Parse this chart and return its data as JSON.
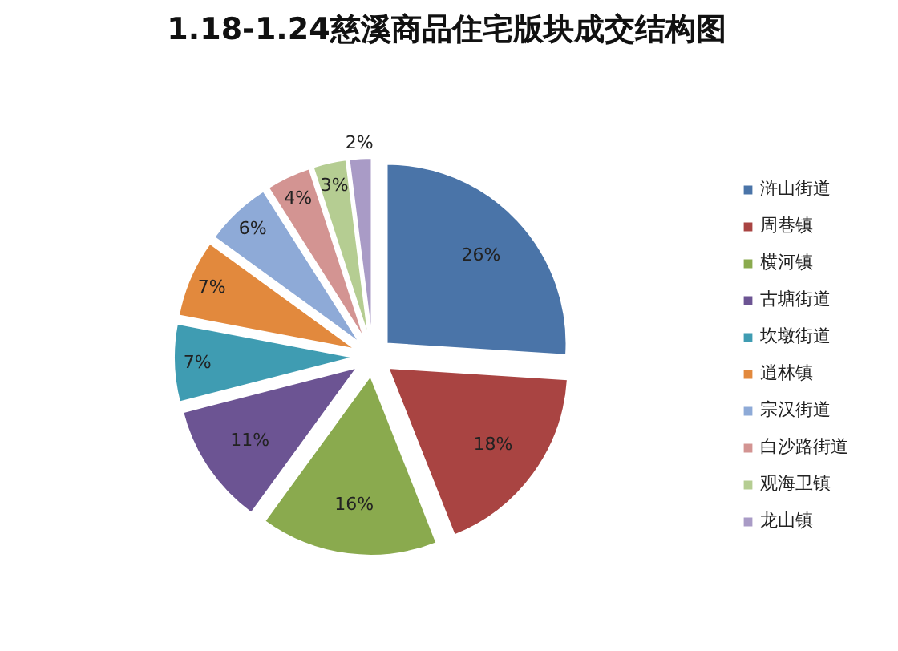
{
  "chart_data": {
    "type": "pie",
    "title": "1.18-1.24慈溪商品住宅版块成交结构图",
    "categories": [
      "浒山街道",
      "周巷镇",
      "横河镇",
      "古塘街道",
      "坎墩街道",
      "逍林镇",
      "宗汉街道",
      "白沙路街道",
      "观海卫镇",
      "龙山镇"
    ],
    "values": [
      26,
      18,
      16,
      11,
      7,
      7,
      6,
      4,
      3,
      2
    ],
    "colors": [
      "#4a74a8",
      "#a94442",
      "#8aaa4e",
      "#6c5493",
      "#3f9cb2",
      "#e2893d",
      "#8eaad7",
      "#d39492",
      "#b5cd92",
      "#a99bc6"
    ],
    "value_labels": [
      "26%",
      "18%",
      "16%",
      "11%",
      "7%",
      "7%",
      "6%",
      "4%",
      "3%",
      "2%"
    ],
    "legend": "right"
  }
}
